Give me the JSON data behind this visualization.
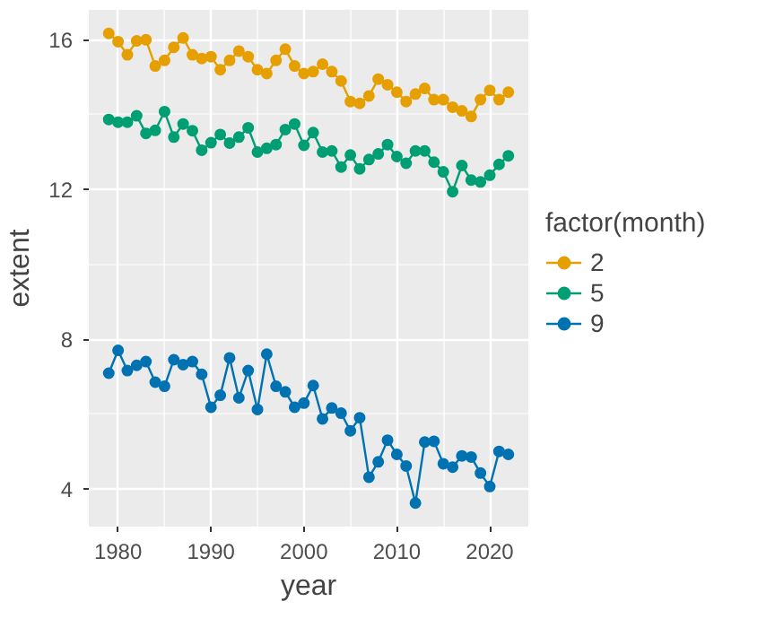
{
  "chart_data": {
    "type": "line",
    "xlabel": "year",
    "ylabel": "extent",
    "legend_title": "factor(month)",
    "legend": "right",
    "marker": "circle",
    "grid": true,
    "x": [
      1979,
      1980,
      1981,
      1982,
      1983,
      1984,
      1985,
      1986,
      1987,
      1988,
      1989,
      1990,
      1991,
      1992,
      1993,
      1994,
      1995,
      1996,
      1997,
      1998,
      1999,
      2000,
      2001,
      2002,
      2003,
      2004,
      2005,
      2006,
      2007,
      2008,
      2009,
      2010,
      2011,
      2012,
      2013,
      2014,
      2015,
      2016,
      2017,
      2018,
      2019,
      2020,
      2021,
      2022
    ],
    "xlim": [
      1976.85,
      2024.15
    ],
    "ylim": [
      2.99,
      16.8
    ],
    "xticks": [
      1980,
      1990,
      2000,
      2010,
      2020
    ],
    "yticks": [
      4,
      8,
      12,
      16
    ],
    "series": [
      {
        "name": "2",
        "color": "#e69f00",
        "values": [
          16.17,
          15.95,
          15.6,
          15.97,
          16.0,
          15.3,
          15.45,
          15.8,
          16.05,
          15.6,
          15.5,
          15.55,
          15.2,
          15.45,
          15.7,
          15.55,
          15.2,
          15.1,
          15.45,
          15.75,
          15.3,
          15.1,
          15.15,
          15.35,
          15.15,
          14.9,
          14.35,
          14.3,
          14.5,
          14.95,
          14.8,
          14.6,
          14.35,
          14.55,
          14.7,
          14.4,
          14.4,
          14.2,
          14.1,
          13.95,
          14.4,
          14.65,
          14.4,
          14.6
        ]
      },
      {
        "name": "5",
        "color": "#009e73",
        "values": [
          13.87,
          13.8,
          13.8,
          13.97,
          13.5,
          13.58,
          14.08,
          13.4,
          13.75,
          13.57,
          13.05,
          13.25,
          13.47,
          13.24,
          13.4,
          13.65,
          13.0,
          13.1,
          13.2,
          13.6,
          13.75,
          13.18,
          13.52,
          13.0,
          13.03,
          12.6,
          12.92,
          12.55,
          12.8,
          12.95,
          13.2,
          12.88,
          12.7,
          13.03,
          13.03,
          12.73,
          12.47,
          11.94,
          12.64,
          12.25,
          12.2,
          12.38,
          12.67,
          12.9
        ]
      },
      {
        "name": "9",
        "color": "#0072b2",
        "values": [
          7.09,
          7.7,
          7.16,
          7.3,
          7.4,
          6.85,
          6.74,
          7.45,
          7.32,
          7.4,
          7.06,
          6.18,
          6.5,
          7.5,
          6.43,
          7.16,
          6.12,
          7.6,
          6.74,
          6.59,
          6.18,
          6.29,
          6.76,
          5.87,
          6.16,
          6.02,
          5.55,
          5.9,
          4.31,
          4.72,
          5.3,
          4.92,
          4.61,
          3.62,
          5.25,
          5.27,
          4.67,
          4.58,
          4.88,
          4.85,
          4.42,
          4.06,
          5.0,
          4.92
        ]
      }
    ]
  }
}
